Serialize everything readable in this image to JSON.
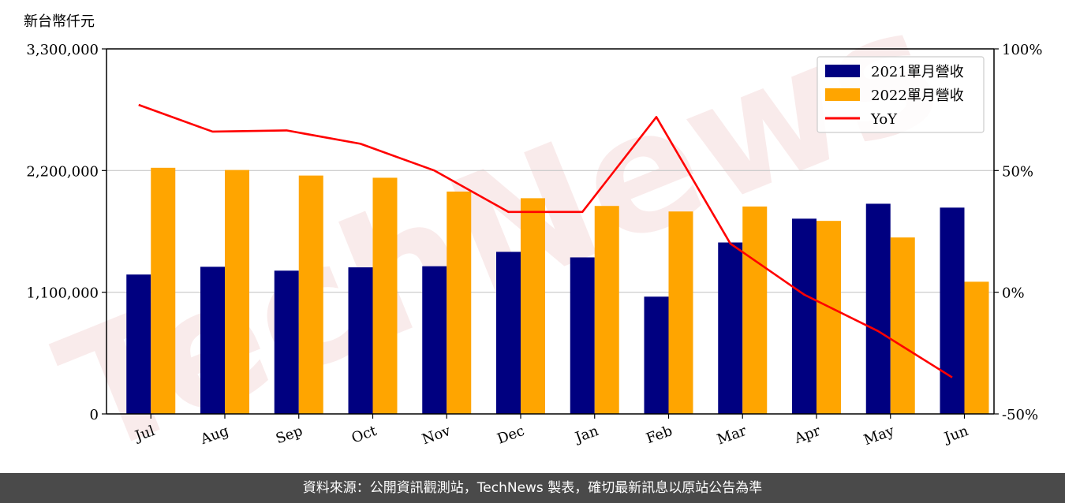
{
  "chart_data": {
    "type": "bar",
    "y_unit_label": "新台幣仟元",
    "categories": [
      "Jul",
      "Aug",
      "Sep",
      "Oct",
      "Nov",
      "Dec",
      "Jan",
      "Feb",
      "Mar",
      "Apr",
      "May",
      "Jun"
    ],
    "series": [
      {
        "name": "2021單月營收",
        "type": "bar",
        "color": "#000080",
        "values": [
          1260000,
          1330000,
          1295000,
          1325000,
          1335000,
          1465000,
          1415000,
          1060000,
          1550000,
          1765000,
          1900000,
          1865000
        ]
      },
      {
        "name": "2022單月營收",
        "type": "bar",
        "color": "#FFA500",
        "values": [
          2225000,
          2205000,
          2155000,
          2135000,
          2010000,
          1950000,
          1880000,
          1830000,
          1875000,
          1745000,
          1595000,
          1195000
        ]
      },
      {
        "name": "YoY",
        "type": "line",
        "axis": "right",
        "color": "#FF0000",
        "values": [
          77,
          66,
          66.5,
          61,
          50,
          33,
          33,
          72,
          20,
          -1,
          -16,
          -35
        ]
      }
    ],
    "left_axis": {
      "ylim": [
        0,
        3300000
      ],
      "ticks": [
        0,
        1100000,
        2200000,
        3300000
      ],
      "tick_labels": [
        "0",
        "1,100,000",
        "2,200,000",
        "3,300,000"
      ]
    },
    "right_axis": {
      "ylim": [
        -50,
        100
      ],
      "ticks": [
        -50,
        0,
        50,
        100
      ],
      "tick_labels": [
        "-50%",
        "0%",
        "50%",
        "100%"
      ]
    },
    "grid": "horizontal",
    "legend_position": "top-right",
    "watermark": "TechNews"
  },
  "footer": {
    "text": "資料來源：公開資訊觀測站，TechNews 製表，確切最新訊息以原站公告為準"
  }
}
